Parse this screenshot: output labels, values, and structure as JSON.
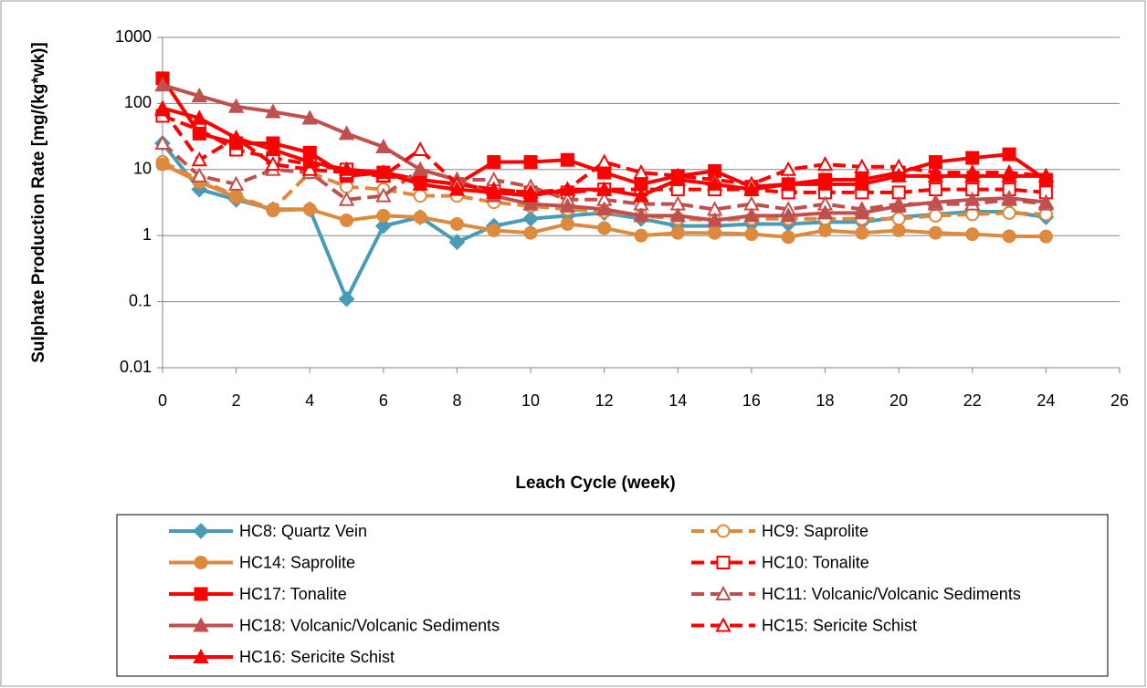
{
  "chart_data": {
    "type": "line",
    "xlabel": "Leach Cycle (week)",
    "ylabel": "Sulphate Production Rate [mg/(kg*wk)]",
    "log_y": true,
    "grid": true,
    "legend": "bottom",
    "x": [
      0,
      1,
      2,
      3,
      4,
      5,
      6,
      7,
      8,
      9,
      10,
      11,
      12,
      13,
      14,
      15,
      16,
      17,
      18,
      19,
      20,
      21,
      22,
      23,
      24
    ],
    "xlim": [
      0,
      26
    ],
    "xticks": [
      0,
      2,
      4,
      6,
      8,
      10,
      12,
      14,
      16,
      18,
      20,
      22,
      24,
      26
    ],
    "ylim": [
      0.01,
      1000
    ],
    "yticks": [
      0.01,
      0.1,
      1,
      10,
      100,
      1000
    ],
    "series": [
      {
        "name": "HC8: Quartz Vein",
        "color": "#4a9bb5",
        "marker": "diamond",
        "dashed": false,
        "filled": true,
        "values": [
          25,
          5,
          3.5,
          2.5,
          2.5,
          0.11,
          1.4,
          1.9,
          0.8,
          1.4,
          1.8,
          2,
          2.2,
          1.8,
          1.4,
          1.4,
          1.5,
          1.5,
          1.6,
          1.6,
          1.9,
          2.1,
          2.3,
          2.3,
          1.9
        ]
      },
      {
        "name": "HC9: Saprolite",
        "color": "#dd8a3e",
        "marker": "circle",
        "dashed": true,
        "filled": false,
        "values": [
          13,
          7,
          4,
          2.5,
          9,
          5.5,
          5,
          4,
          4,
          3.2,
          2.8,
          2.5,
          2.3,
          2,
          1.8,
          1.7,
          1.8,
          1.8,
          1.8,
          1.8,
          1.8,
          2,
          2.1,
          2.2,
          2.1
        ]
      },
      {
        "name": "HC14: Saprolite",
        "color": "#dd8a3e",
        "marker": "circle",
        "dashed": false,
        "filled": true,
        "values": [
          12,
          6.5,
          3.8,
          2.4,
          2.5,
          1.7,
          2,
          1.9,
          1.5,
          1.2,
          1.1,
          1.5,
          1.3,
          1.0,
          1.1,
          1.1,
          1.05,
          0.95,
          1.2,
          1.1,
          1.2,
          1.1,
          1.05,
          0.98,
          0.97
        ]
      },
      {
        "name": "HC10: Tonalite",
        "color": "#ff0000",
        "marker": "square",
        "dashed": true,
        "filled": false,
        "values": [
          65,
          40,
          20,
          15,
          12,
          10,
          8,
          7,
          6,
          5,
          4.5,
          4.5,
          5,
          5,
          5,
          5,
          5,
          4.5,
          4.5,
          4.5,
          4.5,
          5,
          5,
          5,
          4.5
        ]
      },
      {
        "name": "HC17: Tonalite",
        "color": "#ff0000",
        "marker": "square",
        "dashed": false,
        "filled": true,
        "values": [
          240,
          35,
          25,
          25,
          18,
          8,
          9,
          7,
          6,
          13,
          13,
          14,
          9,
          6,
          8,
          9.5,
          5.5,
          6,
          7,
          7,
          9,
          13,
          15,
          17,
          7
        ]
      },
      {
        "name": "HC11: Volcanic/Volcanic Sediments",
        "color": "#c0504d",
        "marker": "triangle",
        "dashed": true,
        "filled": false,
        "values": [
          25,
          8,
          6,
          10,
          9,
          3.5,
          4,
          10,
          7,
          7,
          5.5,
          3.5,
          3.5,
          3,
          3,
          2.5,
          3,
          2.5,
          3,
          2.5,
          3,
          3,
          3,
          3.5,
          3
        ]
      },
      {
        "name": "HC18: Volcanic/Volcanic Sediments",
        "color": "#c0504d",
        "marker": "triangle",
        "dashed": false,
        "filled": true,
        "values": [
          190,
          130,
          90,
          75,
          60,
          35,
          22,
          10,
          7,
          4,
          3,
          2.8,
          2.5,
          2,
          2,
          1.7,
          2,
          2,
          2.2,
          2.2,
          2.8,
          3.2,
          3.5,
          3.7,
          3.2
        ]
      },
      {
        "name": "HC15: Sericite Schist",
        "color": "#ff0000",
        "marker": "triangle",
        "dashed": true,
        "filled": false,
        "values": [
          80,
          14,
          30,
          12,
          10,
          9,
          8,
          20,
          6,
          5,
          4.5,
          5,
          13,
          9,
          8,
          7,
          6,
          10,
          12,
          11,
          11,
          9,
          9,
          9,
          8
        ]
      },
      {
        "name": "HC16: Sericite Schist",
        "color": "#ff0000",
        "marker": "triangle",
        "dashed": false,
        "filled": true,
        "values": [
          85,
          60,
          30,
          20,
          13,
          10,
          9,
          6,
          5,
          4.5,
          4,
          5,
          5,
          4,
          7,
          6,
          5,
          6,
          6,
          6,
          8,
          8,
          8,
          8,
          8
        ]
      }
    ]
  }
}
